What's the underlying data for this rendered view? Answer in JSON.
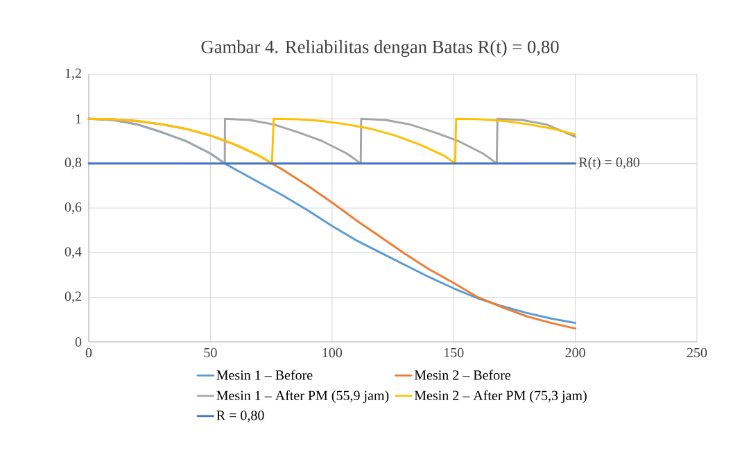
{
  "chart_data": {
    "type": "line",
    "title": "Gambar 4. Reliabilitas dengan Batas R(t) = 0,80",
    "xlim": [
      0,
      250
    ],
    "xticks": [
      0,
      50,
      100,
      150,
      200,
      250
    ],
    "ylim": [
      0,
      1.2
    ],
    "yticks": [
      {
        "value": 0,
        "label": "0"
      },
      {
        "value": 0.2,
        "label": "0,2"
      },
      {
        "value": 0.4,
        "label": "0,4"
      },
      {
        "value": 0.6,
        "label": "0,6"
      },
      {
        "value": 0.8,
        "label": "0,8"
      },
      {
        "value": 1,
        "label": "1"
      },
      {
        "value": 1.2,
        "label": "1,2"
      }
    ],
    "grid": true,
    "legend": "bottom",
    "series": [
      {
        "name": "Mesin 1 – Before",
        "color": "#5b9bd5",
        "x": [
          0,
          10,
          20,
          30,
          40,
          50,
          55.9,
          60,
          70,
          80,
          90,
          100,
          110,
          120,
          130,
          140,
          150,
          160,
          170,
          180,
          190,
          200
        ],
        "values": [
          1,
          0.995,
          0.975,
          0.94,
          0.9,
          0.845,
          0.8,
          0.775,
          0.715,
          0.655,
          0.59,
          0.52,
          0.455,
          0.4,
          0.345,
          0.29,
          0.24,
          0.195,
          0.16,
          0.13,
          0.105,
          0.085
        ]
      },
      {
        "name": "Mesin 2 – Before",
        "color": "#ed7d31",
        "x": [
          0,
          10,
          20,
          30,
          40,
          50,
          60,
          70,
          75.3,
          80,
          90,
          100,
          110,
          120,
          130,
          140,
          150,
          160,
          170,
          180,
          190,
          200
        ],
        "values": [
          1,
          0.998,
          0.99,
          0.975,
          0.955,
          0.925,
          0.885,
          0.835,
          0.8,
          0.77,
          0.7,
          0.625,
          0.545,
          0.47,
          0.395,
          0.325,
          0.264,
          0.2,
          0.155,
          0.115,
          0.085,
          0.06
        ]
      },
      {
        "name": "Mesin 1 – After PM (55,9 jam)",
        "color": "#a5a5a5",
        "x": [
          0,
          10,
          20,
          30,
          40,
          50,
          55.9,
          56,
          66,
          76,
          86,
          96,
          106,
          111.8,
          112,
          122,
          132,
          142,
          152,
          162,
          167.7,
          168,
          178,
          188,
          200
        ],
        "values": [
          1,
          0.995,
          0.975,
          0.94,
          0.9,
          0.845,
          0.8,
          1,
          0.995,
          0.975,
          0.94,
          0.9,
          0.845,
          0.8,
          1,
          0.995,
          0.975,
          0.94,
          0.9,
          0.845,
          0.8,
          1,
          0.995,
          0.975,
          0.92
        ]
      },
      {
        "name": "Mesin 2 – After PM (75,3 jam)",
        "color": "#ffc000",
        "x": [
          0,
          10,
          20,
          30,
          40,
          50,
          60,
          70,
          75.3,
          76,
          86,
          96,
          106,
          116,
          126,
          136,
          146,
          150.6,
          151,
          161,
          171,
          181,
          191,
          200
        ],
        "values": [
          1,
          0.998,
          0.99,
          0.975,
          0.955,
          0.925,
          0.885,
          0.835,
          0.8,
          1,
          0.998,
          0.99,
          0.975,
          0.955,
          0.925,
          0.885,
          0.835,
          0.8,
          1,
          0.998,
          0.99,
          0.975,
          0.955,
          0.93
        ]
      },
      {
        "name": "R = 0,80",
        "color": "#4472c4",
        "x": [
          0,
          200
        ],
        "values": [
          0.8,
          0.8
        ]
      }
    ],
    "annotations": [
      {
        "text": "R(t) = 0,80",
        "x": 200,
        "y": 0.8
      }
    ]
  }
}
